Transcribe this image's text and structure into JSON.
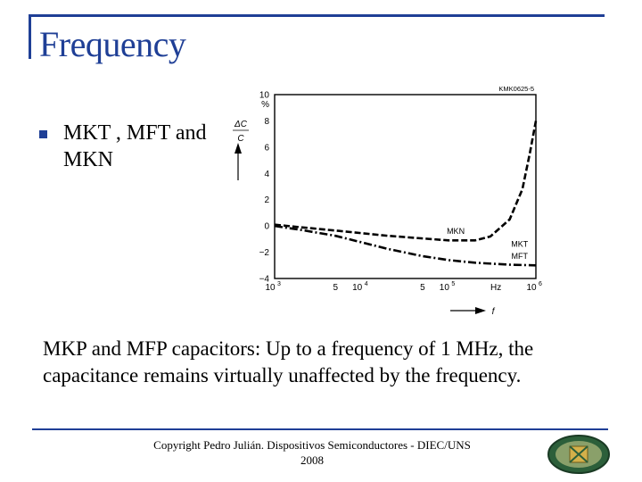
{
  "slide": {
    "title": "Frequency",
    "bullet": "MKT , MFT and MKN",
    "caption": "MKP and MFP capacitors: Up to a frequency of 1 MHz, the capacitance remains virtually unaffected by the frequency.",
    "footer_line1": "Copyright Pedro Julián. Dispositivos Semiconductores - DIEC/UNS",
    "footer_line2": "2008",
    "accent_color": "#1f3f96",
    "logo_icon": "university-seal-icon"
  },
  "chart_data": {
    "type": "line",
    "code": "KMK0625-5",
    "ylabel": "ΔC/C",
    "yunit": "%",
    "xlabel": "f",
    "xunit": "Hz",
    "xscale": "log",
    "xlim": [
      1000,
      1000000
    ],
    "ylim": [
      -4,
      10
    ],
    "yticks": [
      "10",
      "8",
      "6",
      "4",
      "2",
      "0",
      "−2",
      "−4"
    ],
    "xticks": [
      {
        "value": 1000,
        "label": "10",
        "exp": "3"
      },
      {
        "value": 5000,
        "label": "5",
        "exp": ""
      },
      {
        "value": 10000,
        "label": "10",
        "exp": "4"
      },
      {
        "value": 50000,
        "label": "5",
        "exp": ""
      },
      {
        "value": 100000,
        "label": "10",
        "exp": "5"
      },
      {
        "value": 1000000,
        "label": "10",
        "exp": "6"
      }
    ],
    "grid": true,
    "series": [
      {
        "name": "MKN",
        "style": "dashed",
        "x": [
          1000,
          2000,
          5000,
          10000,
          20000,
          50000,
          100000,
          200000,
          300000,
          500000,
          700000,
          850000,
          1000000
        ],
        "y": [
          0.1,
          -0.1,
          -0.35,
          -0.55,
          -0.75,
          -0.95,
          -1.1,
          -1.1,
          -0.8,
          0.5,
          2.8,
          5.5,
          8.0
        ]
      },
      {
        "name": "MKT",
        "name2": "MFT",
        "style": "dashdot",
        "x": [
          1000,
          2000,
          5000,
          10000,
          20000,
          50000,
          100000,
          200000,
          500000,
          1000000
        ],
        "y": [
          0.0,
          -0.3,
          -0.75,
          -1.25,
          -1.75,
          -2.3,
          -2.6,
          -2.8,
          -2.95,
          -3.0
        ]
      }
    ]
  }
}
